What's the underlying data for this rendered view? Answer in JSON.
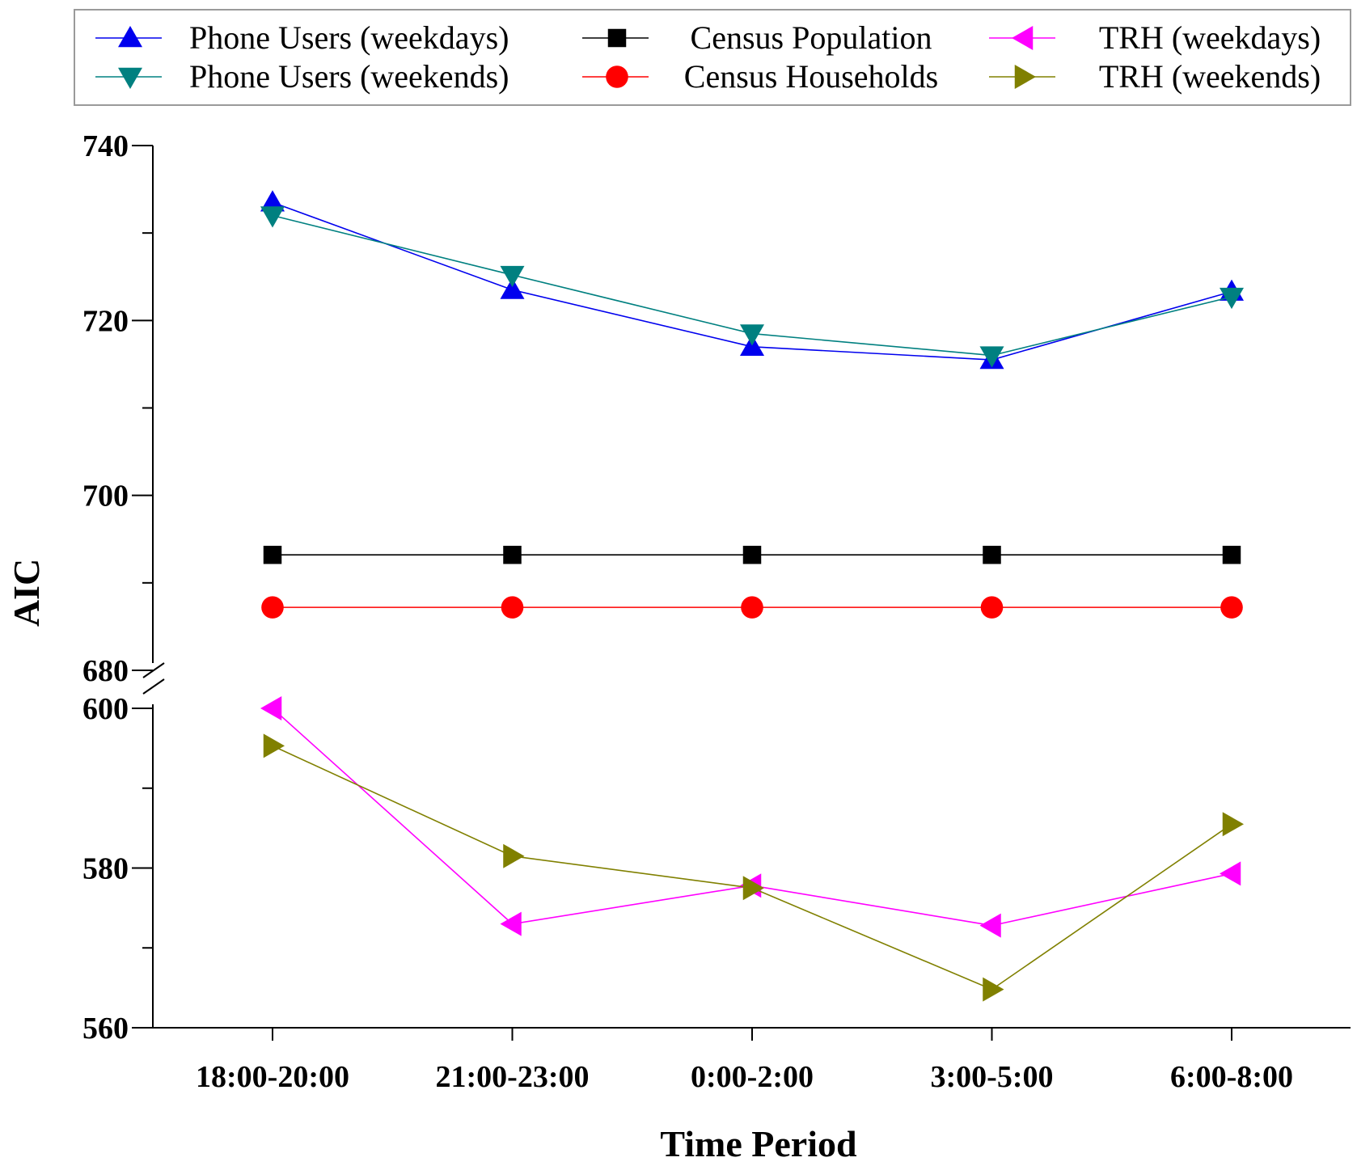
{
  "chart_data": {
    "type": "line",
    "title": "",
    "xlabel": "Time Period",
    "ylabel": "AIC",
    "categories": [
      "18:00-20:00",
      "21:00-23:00",
      "0:00-2:00",
      "3:00-5:00",
      "6:00-8:00"
    ],
    "y_axis_break": {
      "lower_range": [
        560,
        600
      ],
      "upper_range": [
        680,
        740
      ]
    },
    "y_ticks_lower": [
      "560",
      "580",
      "600"
    ],
    "y_ticks_upper": [
      "680",
      "700",
      "720",
      "740"
    ],
    "grid": false,
    "legend_position": "top",
    "series": [
      {
        "name": "Phone Users (weekdays)",
        "marker": "triangle-up",
        "color": "#0000ee",
        "values": [
          733.5,
          723.5,
          717.0,
          715.5,
          723.3
        ]
      },
      {
        "name": "Phone Users (weekends)",
        "marker": "triangle-down",
        "color": "#008080",
        "values": [
          732.0,
          725.2,
          718.5,
          716.0,
          722.7
        ]
      },
      {
        "name": "Census Population",
        "marker": "square",
        "color": "#000000",
        "values": [
          693.2,
          693.2,
          693.2,
          693.2,
          693.2
        ]
      },
      {
        "name": "Census Households",
        "marker": "circle",
        "color": "#ff0000",
        "values": [
          687.2,
          687.2,
          687.2,
          687.2,
          687.2
        ]
      },
      {
        "name": "TRH (weekdays)",
        "marker": "triangle-left",
        "color": "#ff00ff",
        "values": [
          600.0,
          573.0,
          577.8,
          572.8,
          579.3
        ]
      },
      {
        "name": "TRH (weekends)",
        "marker": "triangle-right",
        "color": "#808000",
        "values": [
          595.3,
          581.5,
          577.5,
          564.8,
          585.5
        ]
      }
    ]
  }
}
